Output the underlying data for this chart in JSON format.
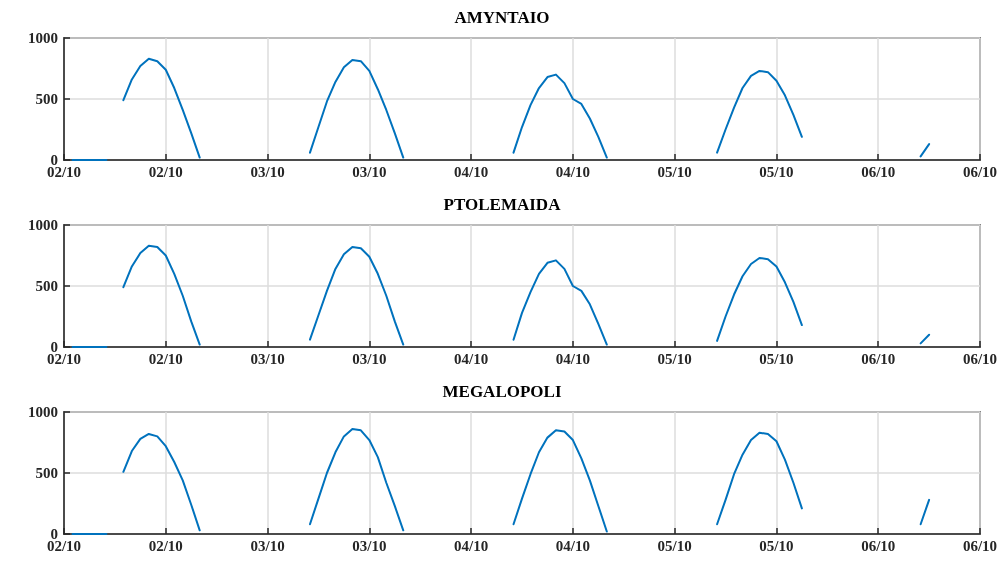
{
  "chart_data": [
    {
      "type": "line",
      "title": "AMYNTAIO",
      "x": [
        "--10-02T01:00",
        "--10-02T02:00",
        "--10-02T03:00",
        "--10-02T04:00",
        "--10-02T05:00",
        "--10-02T06:00",
        "--10-02T07:00",
        "--10-02T08:00",
        "--10-02T09:00",
        "--10-02T10:00",
        "--10-02T11:00",
        "--10-02T12:00",
        "--10-02T13:00",
        "--10-02T14:00",
        "--10-02T15:00",
        "--10-02T16:00",
        "--10-02T17:00",
        "--10-03T05:00",
        "--10-03T06:00",
        "--10-03T07:00",
        "--10-03T08:00",
        "--10-03T09:00",
        "--10-03T10:00",
        "--10-03T11:00",
        "--10-03T12:00",
        "--10-03T13:00",
        "--10-03T14:00",
        "--10-03T15:00",
        "--10-03T16:00",
        "--10-03T17:00",
        "--10-04T05:00",
        "--10-04T06:00",
        "--10-04T07:00",
        "--10-04T08:00",
        "--10-04T09:00",
        "--10-04T10:00",
        "--10-04T11:00",
        "--10-04T12:00",
        "--10-04T13:00",
        "--10-04T14:00",
        "--10-04T15:00",
        "--10-04T16:00",
        "--10-04T17:00",
        "--10-05T05:00",
        "--10-05T06:00",
        "--10-05T07:00",
        "--10-05T08:00",
        "--10-05T09:00",
        "--10-05T10:00",
        "--10-05T11:00",
        "--10-05T12:00",
        "--10-05T13:00",
        "--10-05T14:00",
        "--10-05T15:00",
        "--10-05T16:00",
        "--10-06T05:00",
        "--10-06T06:00"
      ],
      "series": [
        {
          "color": "#0072bd",
          "values": [
            0,
            0,
            0,
            0,
            0,
            null,
            490,
            660,
            770,
            830,
            810,
            740,
            590,
            410,
            220,
            20,
            null,
            60,
            270,
            480,
            640,
            760,
            820,
            810,
            730,
            580,
            410,
            220,
            20,
            null,
            60,
            270,
            450,
            590,
            680,
            700,
            630,
            500,
            460,
            340,
            190,
            20,
            null,
            60,
            250,
            430,
            590,
            690,
            730,
            720,
            650,
            530,
            370,
            190,
            null,
            30,
            130
          ]
        }
      ],
      "xlim": [
        "--10-02T00:00",
        "--10-06T12:00"
      ],
      "xticks": [
        {
          "value": "--10-02T00:00",
          "label": "02/10"
        },
        {
          "value": "--10-02T12:00",
          "label": "02/10"
        },
        {
          "value": "--10-03T00:00",
          "label": "03/10"
        },
        {
          "value": "--10-03T12:00",
          "label": "03/10"
        },
        {
          "value": "--10-04T00:00",
          "label": "04/10"
        },
        {
          "value": "--10-04T12:00",
          "label": "04/10"
        },
        {
          "value": "--10-05T00:00",
          "label": "05/10"
        },
        {
          "value": "--10-05T12:00",
          "label": "05/10"
        },
        {
          "value": "--10-06T00:00",
          "label": "06/10"
        },
        {
          "value": "--10-06T12:00",
          "label": "06/10"
        }
      ],
      "ylim": [
        0,
        1000
      ],
      "yticks": [
        0,
        500,
        1000
      ],
      "grid": true
    },
    {
      "type": "line",
      "title": "PTOLEMAIDA",
      "x": [
        "--10-02T01:00",
        "--10-02T02:00",
        "--10-02T03:00",
        "--10-02T04:00",
        "--10-02T05:00",
        "--10-02T06:00",
        "--10-02T07:00",
        "--10-02T08:00",
        "--10-02T09:00",
        "--10-02T10:00",
        "--10-02T11:00",
        "--10-02T12:00",
        "--10-02T13:00",
        "--10-02T14:00",
        "--10-02T15:00",
        "--10-02T16:00",
        "--10-02T17:00",
        "--10-03T05:00",
        "--10-03T06:00",
        "--10-03T07:00",
        "--10-03T08:00",
        "--10-03T09:00",
        "--10-03T10:00",
        "--10-03T11:00",
        "--10-03T12:00",
        "--10-03T13:00",
        "--10-03T14:00",
        "--10-03T15:00",
        "--10-03T16:00",
        "--10-03T17:00",
        "--10-04T05:00",
        "--10-04T06:00",
        "--10-04T07:00",
        "--10-04T08:00",
        "--10-04T09:00",
        "--10-04T10:00",
        "--10-04T11:00",
        "--10-04T12:00",
        "--10-04T13:00",
        "--10-04T14:00",
        "--10-04T15:00",
        "--10-04T16:00",
        "--10-04T17:00",
        "--10-05T05:00",
        "--10-05T06:00",
        "--10-05T07:00",
        "--10-05T08:00",
        "--10-05T09:00",
        "--10-05T10:00",
        "--10-05T11:00",
        "--10-05T12:00",
        "--10-05T13:00",
        "--10-05T14:00",
        "--10-05T15:00",
        "--10-05T16:00",
        "--10-06T05:00",
        "--10-06T06:00"
      ],
      "series": [
        {
          "color": "#0072bd",
          "values": [
            0,
            0,
            0,
            0,
            0,
            null,
            490,
            660,
            770,
            830,
            820,
            750,
            600,
            420,
            210,
            20,
            null,
            60,
            260,
            460,
            640,
            760,
            820,
            810,
            740,
            600,
            420,
            210,
            20,
            null,
            60,
            280,
            450,
            600,
            690,
            710,
            640,
            500,
            460,
            350,
            190,
            20,
            null,
            50,
            250,
            430,
            580,
            680,
            730,
            720,
            660,
            530,
            370,
            180,
            null,
            30,
            100
          ]
        }
      ],
      "xlim": [
        "--10-02T00:00",
        "--10-06T12:00"
      ],
      "xticks": [
        {
          "value": "--10-02T00:00",
          "label": "02/10"
        },
        {
          "value": "--10-02T12:00",
          "label": "02/10"
        },
        {
          "value": "--10-03T00:00",
          "label": "03/10"
        },
        {
          "value": "--10-03T12:00",
          "label": "03/10"
        },
        {
          "value": "--10-04T00:00",
          "label": "04/10"
        },
        {
          "value": "--10-04T12:00",
          "label": "04/10"
        },
        {
          "value": "--10-05T00:00",
          "label": "05/10"
        },
        {
          "value": "--10-05T12:00",
          "label": "05/10"
        },
        {
          "value": "--10-06T00:00",
          "label": "06/10"
        },
        {
          "value": "--10-06T12:00",
          "label": "06/10"
        }
      ],
      "ylim": [
        0,
        1000
      ],
      "yticks": [
        0,
        500,
        1000
      ],
      "grid": true
    },
    {
      "type": "line",
      "title": "MEGALOPOLI",
      "x": [
        "--10-02T01:00",
        "--10-02T02:00",
        "--10-02T03:00",
        "--10-02T04:00",
        "--10-02T05:00",
        "--10-02T06:00",
        "--10-02T07:00",
        "--10-02T08:00",
        "--10-02T09:00",
        "--10-02T10:00",
        "--10-02T11:00",
        "--10-02T12:00",
        "--10-02T13:00",
        "--10-02T14:00",
        "--10-02T15:00",
        "--10-02T16:00",
        "--10-02T17:00",
        "--10-03T05:00",
        "--10-03T06:00",
        "--10-03T07:00",
        "--10-03T08:00",
        "--10-03T09:00",
        "--10-03T10:00",
        "--10-03T11:00",
        "--10-03T12:00",
        "--10-03T13:00",
        "--10-03T14:00",
        "--10-03T15:00",
        "--10-03T16:00",
        "--10-03T17:00",
        "--10-04T05:00",
        "--10-04T06:00",
        "--10-04T07:00",
        "--10-04T08:00",
        "--10-04T09:00",
        "--10-04T10:00",
        "--10-04T11:00",
        "--10-04T12:00",
        "--10-04T13:00",
        "--10-04T14:00",
        "--10-04T15:00",
        "--10-04T16:00",
        "--10-04T17:00",
        "--10-05T05:00",
        "--10-05T06:00",
        "--10-05T07:00",
        "--10-05T08:00",
        "--10-05T09:00",
        "--10-05T10:00",
        "--10-05T11:00",
        "--10-05T12:00",
        "--10-05T13:00",
        "--10-05T14:00",
        "--10-05T15:00",
        "--10-05T16:00",
        "--10-06T05:00",
        "--10-06T06:00"
      ],
      "series": [
        {
          "color": "#0072bd",
          "values": [
            0,
            0,
            0,
            0,
            0,
            null,
            510,
            680,
            780,
            820,
            800,
            720,
            590,
            440,
            240,
            30,
            null,
            80,
            290,
            500,
            670,
            800,
            860,
            850,
            770,
            630,
            420,
            230,
            30,
            null,
            80,
            290,
            490,
            670,
            790,
            850,
            840,
            770,
            620,
            440,
            230,
            20,
            null,
            80,
            280,
            490,
            650,
            770,
            830,
            820,
            760,
            610,
            420,
            210,
            null,
            80,
            280
          ]
        }
      ],
      "xlim": [
        "--10-02T00:00",
        "--10-06T12:00"
      ],
      "xticks": [
        {
          "value": "--10-02T00:00",
          "label": "02/10"
        },
        {
          "value": "--10-02T12:00",
          "label": "02/10"
        },
        {
          "value": "--10-03T00:00",
          "label": "03/10"
        },
        {
          "value": "--10-03T12:00",
          "label": "03/10"
        },
        {
          "value": "--10-04T00:00",
          "label": "04/10"
        },
        {
          "value": "--10-04T12:00",
          "label": "04/10"
        },
        {
          "value": "--10-05T00:00",
          "label": "05/10"
        },
        {
          "value": "--10-05T12:00",
          "label": "05/10"
        },
        {
          "value": "--10-06T00:00",
          "label": "06/10"
        },
        {
          "value": "--10-06T12:00",
          "label": "06/10"
        }
      ],
      "ylim": [
        0,
        1000
      ],
      "yticks": [
        0,
        500,
        1000
      ],
      "grid": true
    }
  ]
}
